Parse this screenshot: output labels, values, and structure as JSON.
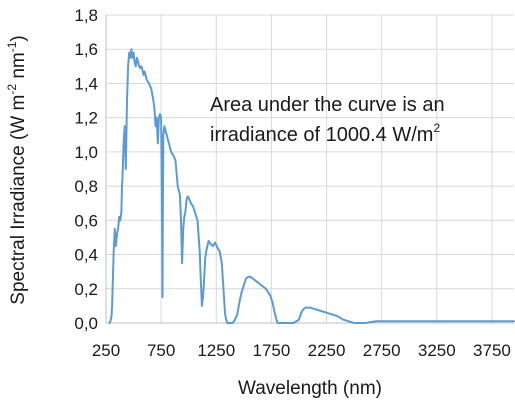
{
  "chart_data": {
    "type": "line",
    "title": "",
    "xlabel": "Wavelength (nm)",
    "ylabel": {
      "prefix": "Spectral Irradiance (W m",
      "exp1": "-2",
      "middle": " nm",
      "exp2": "-1",
      "suffix": ")"
    },
    "xlim": [
      250,
      3950
    ],
    "ylim": [
      0,
      1.8
    ],
    "x_ticks": [
      250,
      750,
      1250,
      1750,
      2250,
      2750,
      3250,
      3750
    ],
    "y_ticks": [
      0,
      0.2,
      0.4,
      0.6,
      0.8,
      1.0,
      1.2,
      1.4,
      1.6,
      1.8
    ],
    "y_tick_labels": [
      "0,0",
      "0,2",
      "0,4",
      "0,6",
      "0,8",
      "1,0",
      "1,2",
      "1,4",
      "1,6",
      "1,8"
    ],
    "grid": true,
    "line_color": "#5b9bd5",
    "annotation": {
      "line1": "Area under the curve is an",
      "line2_text": "irradiance of 1000.4 W/m",
      "line2_sup": "2"
    },
    "series": [
      {
        "x": [
          280,
          290,
          300,
          305,
          310,
          320,
          330,
          340,
          350,
          360,
          370,
          380,
          390,
          395,
          400,
          410,
          420,
          430,
          440,
          450,
          460,
          470,
          480,
          490,
          500,
          510,
          520,
          530,
          540,
          550,
          560,
          570,
          580,
          590,
          600,
          620,
          640,
          660,
          680,
          690,
          700,
          710,
          720,
          730,
          740,
          750,
          760,
          762,
          765,
          770,
          780,
          800,
          820,
          840,
          860,
          880,
          900,
          920,
          930,
          940,
          950,
          960,
          970,
          980,
          990,
          1000,
          1020,
          1040,
          1060,
          1080,
          1100,
          1110,
          1120,
          1130,
          1140,
          1150,
          1160,
          1170,
          1180,
          1200,
          1220,
          1240,
          1260,
          1280,
          1300,
          1310,
          1320,
          1330,
          1340,
          1350,
          1360,
          1380,
          1400,
          1420,
          1440,
          1460,
          1480,
          1500,
          1520,
          1540,
          1560,
          1580,
          1600,
          1620,
          1640,
          1660,
          1680,
          1700,
          1720,
          1740,
          1760,
          1780,
          1800,
          1810,
          1820,
          1850,
          1900,
          1950,
          2000,
          2020,
          2040,
          2060,
          2080,
          2100,
          2150,
          2200,
          2250,
          2300,
          2350,
          2400,
          2450,
          2500,
          2550,
          2600,
          2700,
          2800,
          2900,
          3000,
          3100,
          3200,
          3300,
          3400,
          3500,
          3600,
          3700,
          3800,
          3900,
          3950
        ],
        "y": [
          0.0,
          0.01,
          0.04,
          0.1,
          0.2,
          0.42,
          0.55,
          0.45,
          0.52,
          0.55,
          0.62,
          0.6,
          0.65,
          0.8,
          0.85,
          1.05,
          1.15,
          0.9,
          1.3,
          1.5,
          1.58,
          1.55,
          1.6,
          1.55,
          1.58,
          1.52,
          1.5,
          1.55,
          1.53,
          1.5,
          1.49,
          1.5,
          1.48,
          1.45,
          1.47,
          1.42,
          1.4,
          1.37,
          1.3,
          1.25,
          1.15,
          1.2,
          1.05,
          1.2,
          1.22,
          1.2,
          0.5,
          0.15,
          0.6,
          1.1,
          1.15,
          1.1,
          1.05,
          1.0,
          0.98,
          0.95,
          0.8,
          0.75,
          0.6,
          0.35,
          0.55,
          0.62,
          0.65,
          0.72,
          0.74,
          0.73,
          0.7,
          0.68,
          0.64,
          0.6,
          0.42,
          0.25,
          0.1,
          0.15,
          0.25,
          0.38,
          0.42,
          0.45,
          0.48,
          0.46,
          0.45,
          0.47,
          0.44,
          0.42,
          0.35,
          0.25,
          0.15,
          0.05,
          0.02,
          0.0,
          0.0,
          0.0,
          0.0,
          0.02,
          0.05,
          0.12,
          0.18,
          0.22,
          0.26,
          0.27,
          0.27,
          0.26,
          0.25,
          0.24,
          0.23,
          0.22,
          0.21,
          0.2,
          0.18,
          0.16,
          0.12,
          0.06,
          0.01,
          0.0,
          0.0,
          0.0,
          0.0,
          0.0,
          0.02,
          0.06,
          0.08,
          0.09,
          0.09,
          0.09,
          0.08,
          0.07,
          0.06,
          0.05,
          0.04,
          0.02,
          0.01,
          0.0,
          0.0,
          0.0,
          0.01,
          0.01,
          0.01,
          0.01,
          0.01,
          0.01,
          0.01,
          0.01,
          0.01,
          0.01,
          0.01,
          0.01,
          0.01,
          0.01
        ]
      }
    ]
  }
}
